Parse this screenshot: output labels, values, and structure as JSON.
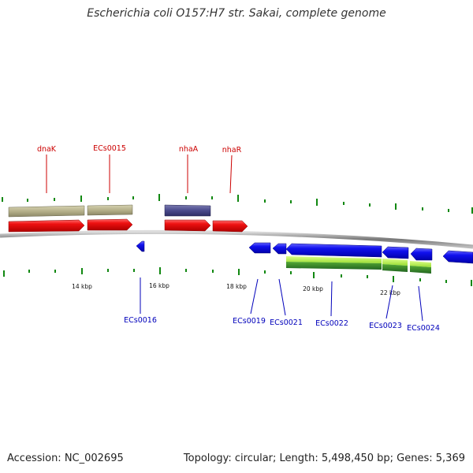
{
  "header": {
    "title": "Escherichia coli O157:H7 str. Sakai, complete genome"
  },
  "footer": {
    "accession": "Accession: NC_002695",
    "summary": "Topology: circular; Length: 5,498,450 bp; Genes: 5,369"
  },
  "colors": {
    "forward_label": "#cc0000",
    "reverse_label": "#0000bb",
    "backbone": "#888888",
    "tick": "#118811",
    "forward_gene": "#ee1111",
    "reverse_gene": "#1111ee",
    "feature_olive": "#b5b08a",
    "feature_purple": "#4a4a8c",
    "feature_green": "#99dd33"
  },
  "scale": {
    "ticks": [
      {
        "label": "14 kbp"
      },
      {
        "label": "16 kbp"
      },
      {
        "label": "18 kbp"
      },
      {
        "label": "20 kbp"
      },
      {
        "label": "22 kbp"
      }
    ]
  },
  "labels": {
    "forward": [
      {
        "name": "dnaK"
      },
      {
        "name": "ECs0015"
      },
      {
        "name": "nhaA"
      },
      {
        "name": "nhaR"
      }
    ],
    "reverse": [
      {
        "name": "ECs0016"
      },
      {
        "name": "ECs0019"
      },
      {
        "name": "ECs0021"
      },
      {
        "name": "ECs0022"
      },
      {
        "name": "ECs0023"
      },
      {
        "name": "ECs0024"
      }
    ]
  }
}
